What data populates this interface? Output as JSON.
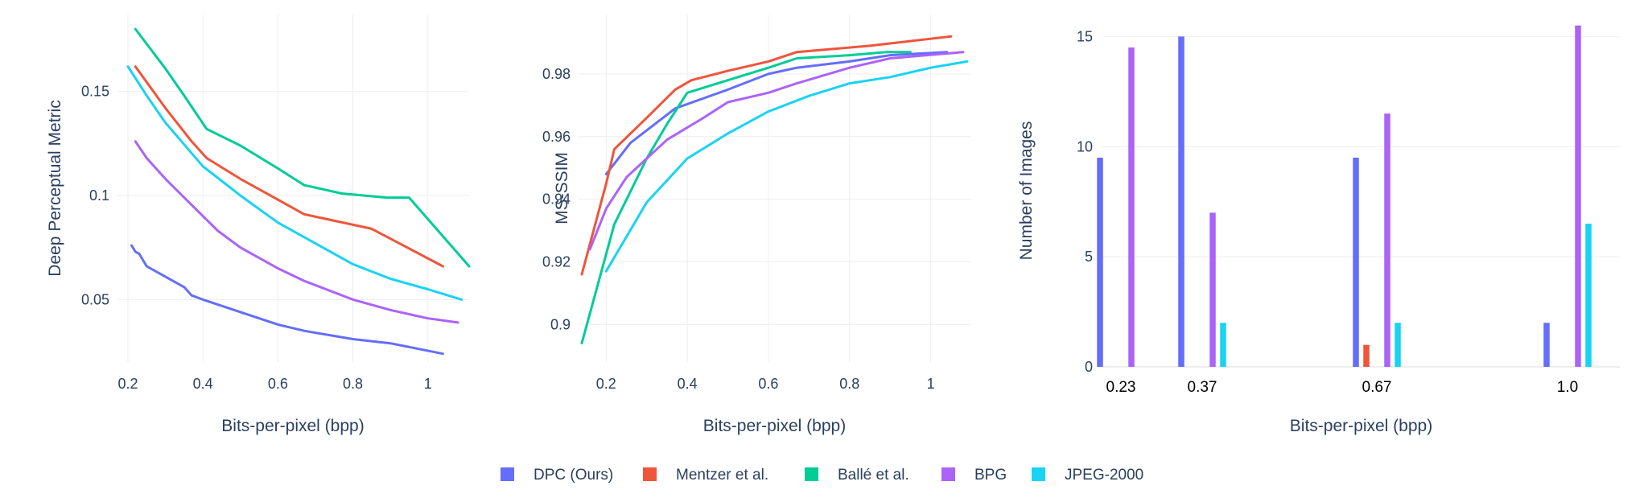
{
  "legend": [
    {
      "name": "DPC (Ours)",
      "color": "#636efa"
    },
    {
      "name": "Mentzer et al.",
      "color": "#ef553b"
    },
    {
      "name": "Ballé et al.",
      "color": "#00cc96"
    },
    {
      "name": "BPG",
      "color": "#ab63fa"
    },
    {
      "name": "JPEG-2000",
      "color": "#19d3f3"
    }
  ],
  "chart_data": [
    {
      "type": "line",
      "xlabel": "Bits-per-pixel (bpp)",
      "ylabel": "Deep Perceptual Metric",
      "xlim": [
        0.17,
        1.11
      ],
      "ylim": [
        0.02,
        0.187
      ],
      "xticks": [
        0.2,
        0.4,
        0.6,
        0.8,
        1
      ],
      "xtick_labels": [
        "0.2",
        "0.4",
        "0.6",
        "0.8",
        "1"
      ],
      "yticks": [
        0.05,
        0.1,
        0.15
      ],
      "ytick_labels": [
        "0.05",
        "0.1",
        "0.15"
      ],
      "grid": true,
      "series": [
        {
          "name": "DPC (Ours)",
          "x": [
            0.21,
            0.22,
            0.23,
            0.25,
            0.3,
            0.35,
            0.37,
            0.4,
            0.5,
            0.6,
            0.67,
            0.8,
            0.9,
            1.04
          ],
          "y": [
            0.076,
            0.073,
            0.072,
            0.066,
            0.061,
            0.056,
            0.052,
            0.05,
            0.044,
            0.038,
            0.035,
            0.031,
            0.029,
            0.024
          ]
        },
        {
          "name": "Mentzer et al.",
          "x": [
            0.22,
            0.3,
            0.37,
            0.41,
            0.5,
            0.6,
            0.67,
            0.85,
            1.04
          ],
          "y": [
            0.162,
            0.142,
            0.126,
            0.118,
            0.108,
            0.098,
            0.091,
            0.084,
            0.066
          ]
        },
        {
          "name": "Ballé et al.",
          "x": [
            0.22,
            0.3,
            0.35,
            0.41,
            0.5,
            0.6,
            0.67,
            0.77,
            0.89,
            0.95,
            1.11
          ],
          "y": [
            0.18,
            0.161,
            0.148,
            0.132,
            0.124,
            0.113,
            0.105,
            0.101,
            0.099,
            0.099,
            0.066
          ]
        },
        {
          "name": "BPG",
          "x": [
            0.22,
            0.25,
            0.3,
            0.35,
            0.44,
            0.5,
            0.6,
            0.67,
            0.8,
            0.9,
            1.0,
            1.08
          ],
          "y": [
            0.126,
            0.118,
            0.108,
            0.099,
            0.083,
            0.075,
            0.065,
            0.059,
            0.05,
            0.045,
            0.041,
            0.039
          ]
        },
        {
          "name": "JPEG-2000",
          "x": [
            0.2,
            0.25,
            0.3,
            0.4,
            0.5,
            0.6,
            0.7,
            0.8,
            0.9,
            1.0,
            1.09
          ],
          "y": [
            0.162,
            0.148,
            0.135,
            0.114,
            0.1,
            0.087,
            0.077,
            0.067,
            0.06,
            0.055,
            0.05
          ]
        }
      ]
    },
    {
      "type": "line",
      "xlabel": "Bits-per-pixel (bpp)",
      "ylabel": "MS-SSIM",
      "xlim": [
        0.13,
        1.1
      ],
      "ylim": [
        0.888,
        0.999
      ],
      "xticks": [
        0.2,
        0.4,
        0.6,
        0.8,
        1
      ],
      "xtick_labels": [
        "0.2",
        "0.4",
        "0.6",
        "0.8",
        "1"
      ],
      "yticks": [
        0.9,
        0.92,
        0.94,
        0.96,
        0.98
      ],
      "ytick_labels": [
        "0.9",
        "0.92",
        "0.94",
        "0.96",
        "0.98"
      ],
      "grid": true,
      "series": [
        {
          "name": "DPC (Ours)",
          "x": [
            0.2,
            0.26,
            0.37,
            0.5,
            0.6,
            0.67,
            0.8,
            0.9,
            1.04
          ],
          "y": [
            0.948,
            0.958,
            0.969,
            0.975,
            0.98,
            0.982,
            0.984,
            0.986,
            0.987
          ]
        },
        {
          "name": "Mentzer et al.",
          "x": [
            0.14,
            0.2,
            0.22,
            0.3,
            0.37,
            0.41,
            0.5,
            0.6,
            0.67,
            0.85,
            1.05
          ],
          "y": [
            0.916,
            0.945,
            0.956,
            0.966,
            0.975,
            0.978,
            0.981,
            0.984,
            0.987,
            0.989,
            0.992
          ]
        },
        {
          "name": "Ballé et al.",
          "x": [
            0.14,
            0.22,
            0.3,
            0.35,
            0.4,
            0.5,
            0.6,
            0.67,
            0.8,
            0.89,
            0.95
          ],
          "y": [
            0.894,
            0.932,
            0.953,
            0.964,
            0.974,
            0.978,
            0.982,
            0.985,
            0.986,
            0.987,
            0.987
          ]
        },
        {
          "name": "BPG",
          "x": [
            0.16,
            0.2,
            0.25,
            0.35,
            0.44,
            0.5,
            0.6,
            0.67,
            0.8,
            0.9,
            1.08
          ],
          "y": [
            0.924,
            0.937,
            0.947,
            0.959,
            0.966,
            0.971,
            0.974,
            0.977,
            0.982,
            0.985,
            0.987
          ]
        },
        {
          "name": "JPEG-2000",
          "x": [
            0.2,
            0.3,
            0.4,
            0.5,
            0.6,
            0.7,
            0.8,
            0.9,
            1.0,
            1.09
          ],
          "y": [
            0.917,
            0.939,
            0.953,
            0.961,
            0.968,
            0.973,
            0.977,
            0.979,
            0.982,
            0.984
          ]
        }
      ]
    },
    {
      "type": "bar",
      "xlabel": "Bits-per-pixel (bpp)",
      "ylabel": "Number of Images",
      "categories": [
        "0.23",
        "0.37",
        "0.67",
        "1.0"
      ],
      "ylim": [
        0,
        16
      ],
      "yticks": [
        0,
        5,
        10,
        15
      ],
      "ytick_labels": [
        "0",
        "5",
        "10",
        "15"
      ],
      "grid": true,
      "series": [
        {
          "name": "DPC (Ours)",
          "values": [
            9.5,
            15,
            9.5,
            2
          ]
        },
        {
          "name": "Mentzer et al.",
          "values": [
            0,
            0,
            1,
            0
          ]
        },
        {
          "name": "Ballé et al.",
          "values": [
            0,
            0,
            0,
            0
          ]
        },
        {
          "name": "BPG",
          "values": [
            14.5,
            7,
            11.5,
            15.5
          ]
        },
        {
          "name": "JPEG-2000",
          "values": [
            0,
            2,
            2,
            6.5
          ]
        }
      ]
    }
  ]
}
